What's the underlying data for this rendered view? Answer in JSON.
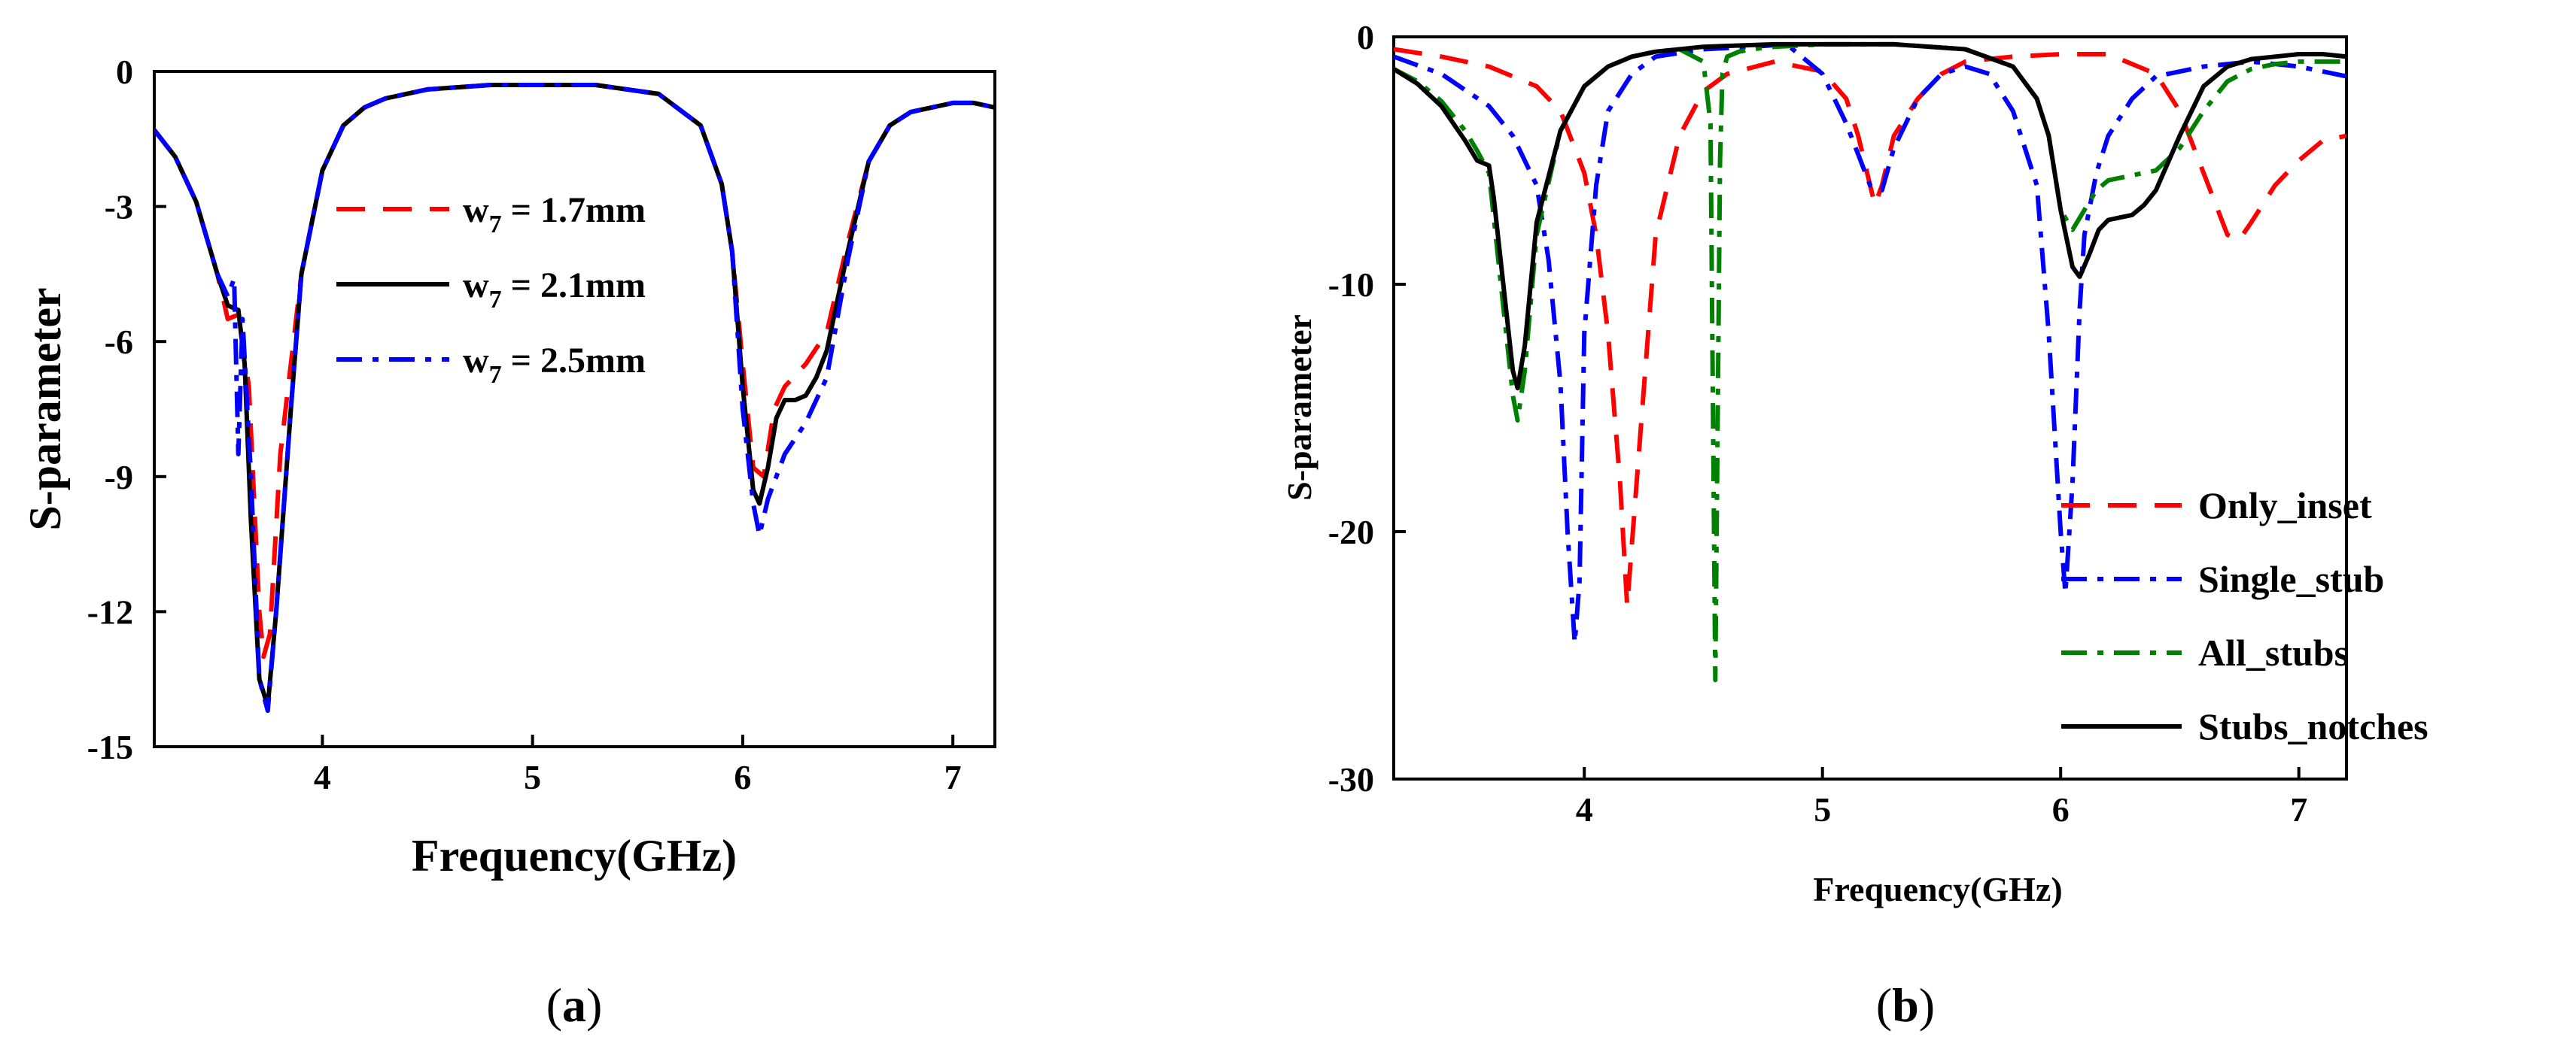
{
  "chart_data": [
    {
      "panel": "a",
      "panel_label": "a",
      "type": "line",
      "xlabel": "Frequency(GHz)",
      "ylabel": "S-parameter",
      "xlim": [
        3.2,
        7.2
      ],
      "ylim": [
        -15,
        0
      ],
      "xticks": [
        4,
        5,
        6,
        7
      ],
      "yticks": [
        0,
        -3,
        -6,
        -9,
        -12,
        -15
      ],
      "xtick_labels": [
        "4",
        "5",
        "6",
        "7"
      ],
      "ytick_labels": [
        "0",
        "-3",
        "-6",
        "-9",
        "-12",
        "-15"
      ],
      "legend_position": "upper-center",
      "series": [
        {
          "name": "w7 = 1.7mm",
          "label_main": "w",
          "label_sub": "7",
          "label_rest": " = 1.7mm",
          "color": "#ff0000",
          "dash": "dash",
          "x": [
            3.2,
            3.3,
            3.4,
            3.5,
            3.55,
            3.6,
            3.65,
            3.7,
            3.72,
            3.75,
            3.8,
            3.9,
            4.0,
            4.1,
            4.2,
            4.3,
            4.5,
            4.8,
            5.0,
            5.3,
            5.6,
            5.8,
            5.9,
            5.95,
            6.0,
            6.05,
            6.1,
            6.15,
            6.2,
            6.3,
            6.4,
            6.5,
            6.6,
            6.7,
            6.8,
            6.9,
            7.0,
            7.1,
            7.2
          ],
          "y": [
            -1.3,
            -1.9,
            -2.9,
            -4.5,
            -5.5,
            -5.4,
            -7.0,
            -12.0,
            -13.0,
            -12.5,
            -8.5,
            -4.5,
            -2.2,
            -1.2,
            -0.8,
            -0.6,
            -0.4,
            -0.3,
            -0.3,
            -0.3,
            -0.5,
            -1.2,
            -2.5,
            -4.0,
            -6.5,
            -8.8,
            -9.0,
            -7.5,
            -7.0,
            -6.5,
            -5.8,
            -3.8,
            -2.0,
            -1.2,
            -0.9,
            -0.8,
            -0.7,
            -0.7,
            -0.8
          ]
        },
        {
          "name": "w7 = 2.1mm",
          "label_main": "w",
          "label_sub": "7",
          "label_rest": " = 2.1mm",
          "color": "#000000",
          "dash": "solid",
          "x": [
            3.2,
            3.3,
            3.4,
            3.5,
            3.55,
            3.6,
            3.63,
            3.66,
            3.7,
            3.74,
            3.78,
            3.85,
            3.9,
            4.0,
            4.1,
            4.2,
            4.3,
            4.5,
            4.8,
            5.0,
            5.3,
            5.6,
            5.8,
            5.9,
            5.95,
            6.0,
            6.05,
            6.08,
            6.12,
            6.16,
            6.2,
            6.25,
            6.3,
            6.35,
            6.4,
            6.5,
            6.6,
            6.7,
            6.8,
            6.9,
            7.0,
            7.1,
            7.2
          ],
          "y": [
            -1.3,
            -1.9,
            -2.9,
            -4.5,
            -5.2,
            -5.3,
            -6.5,
            -10.0,
            -13.5,
            -14.1,
            -12.0,
            -7.5,
            -4.5,
            -2.2,
            -1.2,
            -0.8,
            -0.6,
            -0.4,
            -0.3,
            -0.3,
            -0.3,
            -0.5,
            -1.2,
            -2.5,
            -4.0,
            -7.0,
            -9.3,
            -9.6,
            -8.8,
            -7.7,
            -7.3,
            -7.3,
            -7.2,
            -6.8,
            -6.2,
            -4.0,
            -2.0,
            -1.2,
            -0.9,
            -0.8,
            -0.7,
            -0.7,
            -0.8
          ]
        },
        {
          "name": "w7 = 2.5mm",
          "label_main": "w",
          "label_sub": "7",
          "label_rest": " = 2.5mm",
          "color": "#0000ff",
          "dash": "dashdot",
          "x": [
            3.2,
            3.3,
            3.4,
            3.5,
            3.55,
            3.58,
            3.6,
            3.62,
            3.66,
            3.7,
            3.74,
            3.78,
            3.85,
            3.9,
            4.0,
            4.1,
            4.2,
            4.3,
            4.5,
            4.8,
            5.0,
            5.3,
            5.6,
            5.8,
            5.9,
            5.95,
            6.0,
            6.05,
            6.08,
            6.12,
            6.2,
            6.3,
            6.4,
            6.5,
            6.6,
            6.7,
            6.8,
            6.9,
            7.0,
            7.1,
            7.2
          ],
          "y": [
            -1.3,
            -1.9,
            -2.9,
            -4.5,
            -5.0,
            -4.6,
            -8.5,
            -5.5,
            -9.0,
            -13.5,
            -14.2,
            -12.0,
            -7.5,
            -4.5,
            -2.2,
            -1.2,
            -0.8,
            -0.6,
            -0.4,
            -0.3,
            -0.3,
            -0.3,
            -0.5,
            -1.2,
            -2.5,
            -4.0,
            -7.5,
            -9.6,
            -10.3,
            -9.5,
            -8.5,
            -7.8,
            -6.8,
            -4.2,
            -2.0,
            -1.2,
            -0.9,
            -0.8,
            -0.7,
            -0.7,
            -0.8
          ]
        }
      ]
    },
    {
      "panel": "b",
      "panel_label": "b",
      "type": "line",
      "xlabel": "Frequency(GHz)",
      "ylabel": "S-parameter",
      "xlim": [
        3.2,
        7.2
      ],
      "ylim": [
        -30,
        0
      ],
      "xticks": [
        4,
        5,
        6,
        7
      ],
      "yticks": [
        0,
        -10,
        -20,
        -30
      ],
      "xtick_labels": [
        "4",
        "5",
        "6",
        "7"
      ],
      "ytick_labels": [
        "0",
        "-10",
        "-20",
        "-30"
      ],
      "legend_position": "lower-right",
      "series": [
        {
          "name": "Only_inset",
          "color": "#ff0000",
          "dash": "dash",
          "x": [
            3.2,
            3.4,
            3.6,
            3.8,
            3.9,
            4.0,
            4.05,
            4.1,
            4.15,
            4.18,
            4.22,
            4.3,
            4.4,
            4.5,
            4.6,
            4.8,
            5.0,
            5.1,
            5.15,
            5.2,
            5.22,
            5.25,
            5.3,
            5.4,
            5.5,
            5.6,
            5.8,
            6.0,
            6.2,
            6.4,
            6.5,
            6.6,
            6.7,
            6.75,
            6.8,
            6.9,
            7.0,
            7.1,
            7.2
          ],
          "y": [
            -0.5,
            -0.8,
            -1.2,
            -2.0,
            -3.0,
            -5.5,
            -8.0,
            -12.0,
            -18.0,
            -23.0,
            -18.0,
            -8.0,
            -4.0,
            -2.2,
            -1.5,
            -1.0,
            -1.4,
            -2.5,
            -4.0,
            -6.0,
            -6.8,
            -6.0,
            -4.0,
            -2.5,
            -1.5,
            -1.0,
            -0.8,
            -0.7,
            -0.7,
            -1.5,
            -3.0,
            -5.5,
            -8.0,
            -8.2,
            -7.5,
            -6.0,
            -5.0,
            -4.2,
            -4.0
          ]
        },
        {
          "name": "Single_stub",
          "color": "#0000ff",
          "dash": "dashdot",
          "x": [
            3.2,
            3.4,
            3.6,
            3.7,
            3.8,
            3.85,
            3.9,
            3.93,
            3.96,
            3.98,
            4.0,
            4.05,
            4.1,
            4.2,
            4.3,
            4.5,
            4.7,
            4.85,
            5.0,
            5.1,
            5.2,
            5.25,
            5.3,
            5.4,
            5.5,
            5.6,
            5.7,
            5.8,
            5.9,
            5.95,
            6.0,
            6.02,
            6.05,
            6.08,
            6.1,
            6.15,
            6.2,
            6.3,
            6.4,
            6.6,
            6.8,
            7.0,
            7.2
          ],
          "y": [
            -0.8,
            -1.5,
            -2.8,
            -4.0,
            -6.0,
            -9.0,
            -14.0,
            -20.0,
            -24.5,
            -22.0,
            -12.0,
            -6.0,
            -3.0,
            -1.5,
            -0.8,
            -0.5,
            -0.4,
            -0.3,
            -1.5,
            -3.5,
            -6.0,
            -6.2,
            -4.5,
            -2.5,
            -1.5,
            -1.2,
            -1.5,
            -3.0,
            -6.0,
            -12.0,
            -20.0,
            -22.5,
            -18.0,
            -11.0,
            -8.0,
            -5.5,
            -4.0,
            -2.5,
            -1.6,
            -1.2,
            -1.0,
            -1.2,
            -1.6
          ]
        },
        {
          "name": "All_stubs",
          "color": "#008000",
          "dash": "dashdot",
          "x": [
            3.2,
            3.3,
            3.4,
            3.5,
            3.55,
            3.6,
            3.65,
            3.7,
            3.72,
            3.75,
            3.8,
            3.9,
            4.0,
            4.1,
            4.2,
            4.3,
            4.4,
            4.5,
            4.53,
            4.55,
            4.57,
            4.58,
            4.6,
            4.65,
            4.7,
            4.8,
            5.0,
            5.3,
            5.6,
            5.8,
            5.9,
            5.95,
            6.0,
            6.05,
            6.1,
            6.15,
            6.2,
            6.3,
            6.4,
            6.5,
            6.6,
            6.7,
            6.8,
            6.9,
            7.0,
            7.2
          ],
          "y": [
            -1.3,
            -1.8,
            -2.6,
            -3.8,
            -4.6,
            -5.5,
            -10.0,
            -14.5,
            -15.5,
            -13.5,
            -8.0,
            -3.8,
            -2.0,
            -1.2,
            -0.8,
            -0.6,
            -0.5,
            -1.0,
            -3.5,
            -26.0,
            -5.0,
            -1.5,
            -0.8,
            -0.6,
            -0.5,
            -0.4,
            -0.3,
            -0.3,
            -0.5,
            -1.2,
            -2.5,
            -4.0,
            -7.0,
            -7.8,
            -7.0,
            -6.2,
            -5.8,
            -5.6,
            -5.4,
            -4.5,
            -3.0,
            -1.8,
            -1.3,
            -1.1,
            -1.0,
            -1.0
          ]
        },
        {
          "name": "Stubs_notches",
          "color": "#000000",
          "dash": "solid",
          "x": [
            3.2,
            3.3,
            3.4,
            3.5,
            3.55,
            3.6,
            3.62,
            3.66,
            3.7,
            3.72,
            3.75,
            3.8,
            3.9,
            4.0,
            4.1,
            4.2,
            4.3,
            4.5,
            4.8,
            5.0,
            5.3,
            5.6,
            5.8,
            5.9,
            5.95,
            6.0,
            6.05,
            6.08,
            6.12,
            6.16,
            6.2,
            6.25,
            6.3,
            6.35,
            6.4,
            6.5,
            6.6,
            6.7,
            6.8,
            6.9,
            7.0,
            7.1,
            7.2
          ],
          "y": [
            -1.3,
            -1.9,
            -2.8,
            -4.2,
            -5.0,
            -5.2,
            -6.5,
            -10.0,
            -13.5,
            -14.2,
            -12.5,
            -7.5,
            -3.8,
            -2.0,
            -1.2,
            -0.8,
            -0.6,
            -0.4,
            -0.3,
            -0.3,
            -0.3,
            -0.5,
            -1.2,
            -2.5,
            -4.0,
            -7.0,
            -9.3,
            -9.7,
            -8.8,
            -7.8,
            -7.4,
            -7.3,
            -7.2,
            -6.8,
            -6.2,
            -4.0,
            -2.0,
            -1.2,
            -0.9,
            -0.8,
            -0.7,
            -0.7,
            -0.8
          ]
        }
      ]
    }
  ]
}
